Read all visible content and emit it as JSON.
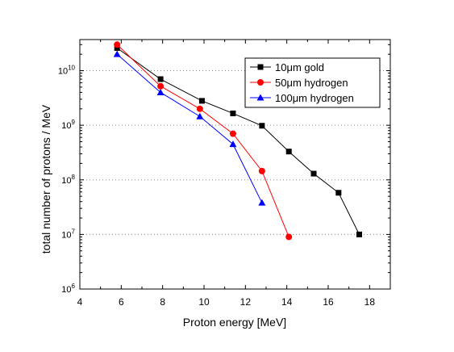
{
  "chart_data": {
    "type": "line",
    "title": "",
    "xlabel": "Proton energy [MeV]",
    "ylabel": "total number of protons / MeV",
    "xlim": [
      4,
      19
    ],
    "ylim_log10": [
      6,
      10.57
    ],
    "y_scale": "log",
    "x_ticks": [
      4,
      6,
      8,
      10,
      12,
      14,
      16,
      18
    ],
    "x_tick_labels": [
      "4",
      "6",
      "8",
      "10",
      "12",
      "14",
      "16",
      "18"
    ],
    "y_ticks_exp": [
      6,
      7,
      8,
      9,
      10
    ],
    "y_tick_base": "10",
    "y_tick_exponents": [
      "6",
      "7",
      "8",
      "9",
      "10"
    ],
    "grid": "horizontal dotted at decades",
    "legend_position": "top-right",
    "series": [
      {
        "name": "10μm gold",
        "color": "#000000",
        "marker": "square",
        "points": [
          {
            "x": 5.8,
            "y": 26000000000.0
          },
          {
            "x": 7.9,
            "y": 7000000000.0
          },
          {
            "x": 9.9,
            "y": 2800000000.0
          },
          {
            "x": 11.4,
            "y": 1650000000.0
          },
          {
            "x": 12.8,
            "y": 980000000.0
          },
          {
            "x": 14.1,
            "y": 330000000.0
          },
          {
            "x": 15.3,
            "y": 130000000.0
          },
          {
            "x": 16.5,
            "y": 58000000.0
          },
          {
            "x": 17.5,
            "y": 10000000.0
          }
        ]
      },
      {
        "name": "50μm hydrogen",
        "color": "#ff0000",
        "marker": "circle",
        "points": [
          {
            "x": 5.8,
            "y": 30000000000.0
          },
          {
            "x": 7.9,
            "y": 5200000000.0
          },
          {
            "x": 9.8,
            "y": 2000000000.0
          },
          {
            "x": 11.4,
            "y": 700000000.0
          },
          {
            "x": 12.8,
            "y": 145000000.0
          },
          {
            "x": 14.1,
            "y": 9000000.0
          }
        ]
      },
      {
        "name": "100μm hydrogen",
        "color": "#0000ff",
        "marker": "triangle",
        "points": [
          {
            "x": 5.8,
            "y": 20000000000.0
          },
          {
            "x": 7.9,
            "y": 4000000000.0
          },
          {
            "x": 9.8,
            "y": 1450000000.0
          },
          {
            "x": 11.4,
            "y": 450000000.0
          },
          {
            "x": 12.8,
            "y": 38000000.0
          }
        ]
      }
    ]
  }
}
